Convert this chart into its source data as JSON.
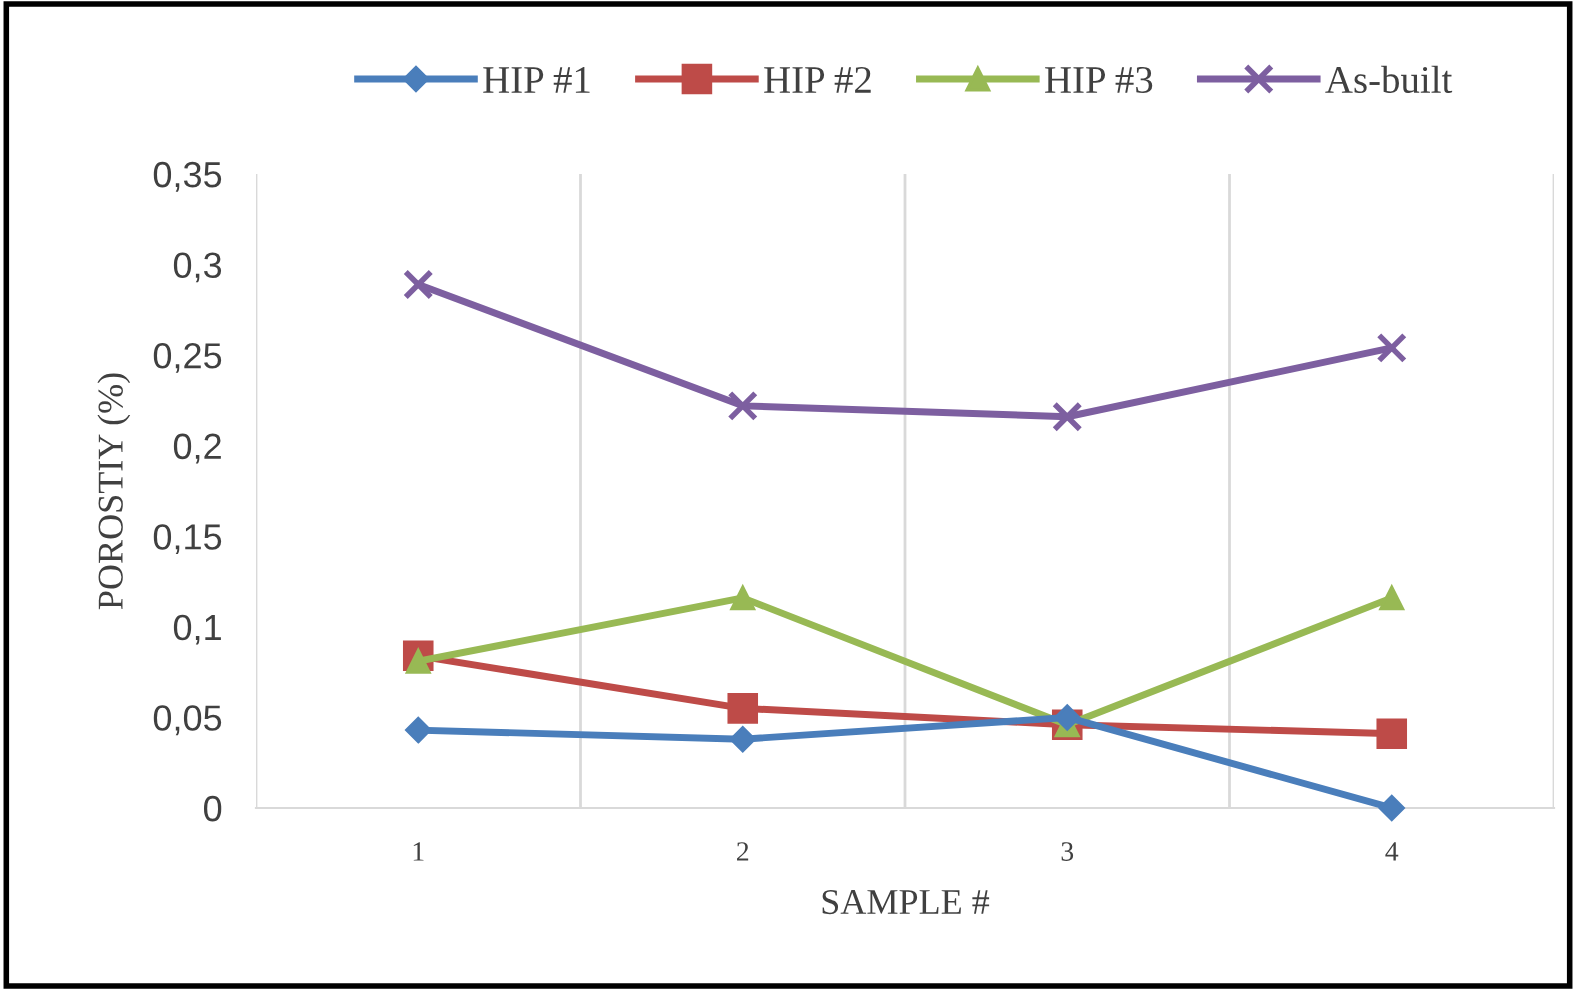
{
  "chart_data": {
    "type": "line",
    "xlabel": "SAMPLE #",
    "ylabel": "POROSTIY (%)",
    "categories": [
      "1",
      "2",
      "3",
      "4"
    ],
    "series": [
      {
        "name": "HIP #1",
        "color": "#4a7ebb",
        "marker": "diamond",
        "values": [
          0.043,
          0.038,
          0.05,
          0
        ]
      },
      {
        "name": "HIP #2",
        "color": "#be4b48",
        "marker": "square",
        "values": [
          0.084,
          0.055,
          0.046,
          0.041
        ]
      },
      {
        "name": "HIP #3",
        "color": "#98b954",
        "marker": "triangle",
        "values": [
          0.081,
          0.116,
          0.046,
          0.116
        ]
      },
      {
        "name": "As-built",
        "color": "#7d5fa0",
        "marker": "cross",
        "values": [
          0.289,
          0.222,
          0.216,
          0.254
        ]
      }
    ],
    "ylim": [
      0,
      0.35
    ],
    "yticks": [
      0,
      {
        "value": 0.05,
        "label": "0,05"
      },
      {
        "value": 0.1,
        "label": "0,1"
      },
      {
        "value": 0.15,
        "label": "0,15"
      },
      {
        "value": 0.2,
        "label": "0,2"
      },
      {
        "value": 0.25,
        "label": "0,25"
      },
      {
        "value": 0.3,
        "label": "0,3"
      },
      {
        "value": 0.35,
        "label": "0,35"
      }
    ],
    "grid": "x",
    "legend": "top",
    "line_style": "solid"
  }
}
